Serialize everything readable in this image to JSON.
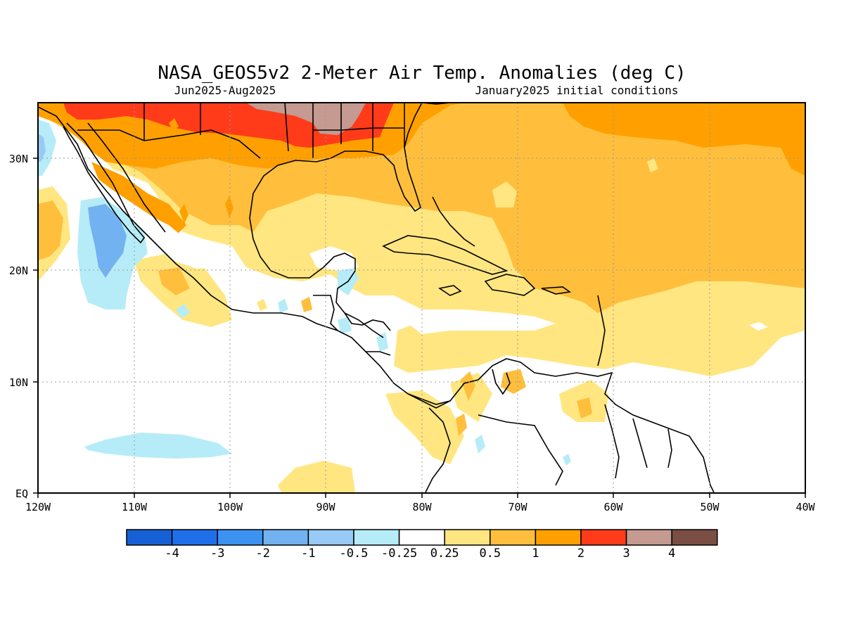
{
  "header": {
    "title": "NASA_GEOS5v2 2-Meter Air Temp. Anomalies (deg C)",
    "subtitle_left": "Jun2025-Aug2025",
    "subtitle_right": "January2025 initial conditions"
  },
  "axes": {
    "lat_labels": [
      "30N",
      "20N",
      "10N",
      "EQ"
    ],
    "lon_labels": [
      "120W",
      "110W",
      "100W",
      "90W",
      "80W",
      "70W",
      "60W",
      "50W",
      "40W"
    ]
  },
  "legend": {
    "colors": [
      "#1660d6",
      "#1f6fea",
      "#3b92f1",
      "#72b2f1",
      "#97caf5",
      "#b6ecf8",
      "#ffffff",
      "#ffe680",
      "#ffbf3c",
      "#ffa000",
      "#ff3b1a",
      "#c49a91",
      "#7a4e43"
    ],
    "labels": [
      "-4",
      "-3",
      "-2",
      "-1",
      "-0.5",
      "-0.25",
      "0.25",
      "0.5",
      "1",
      "2",
      "3",
      "4"
    ]
  }
}
